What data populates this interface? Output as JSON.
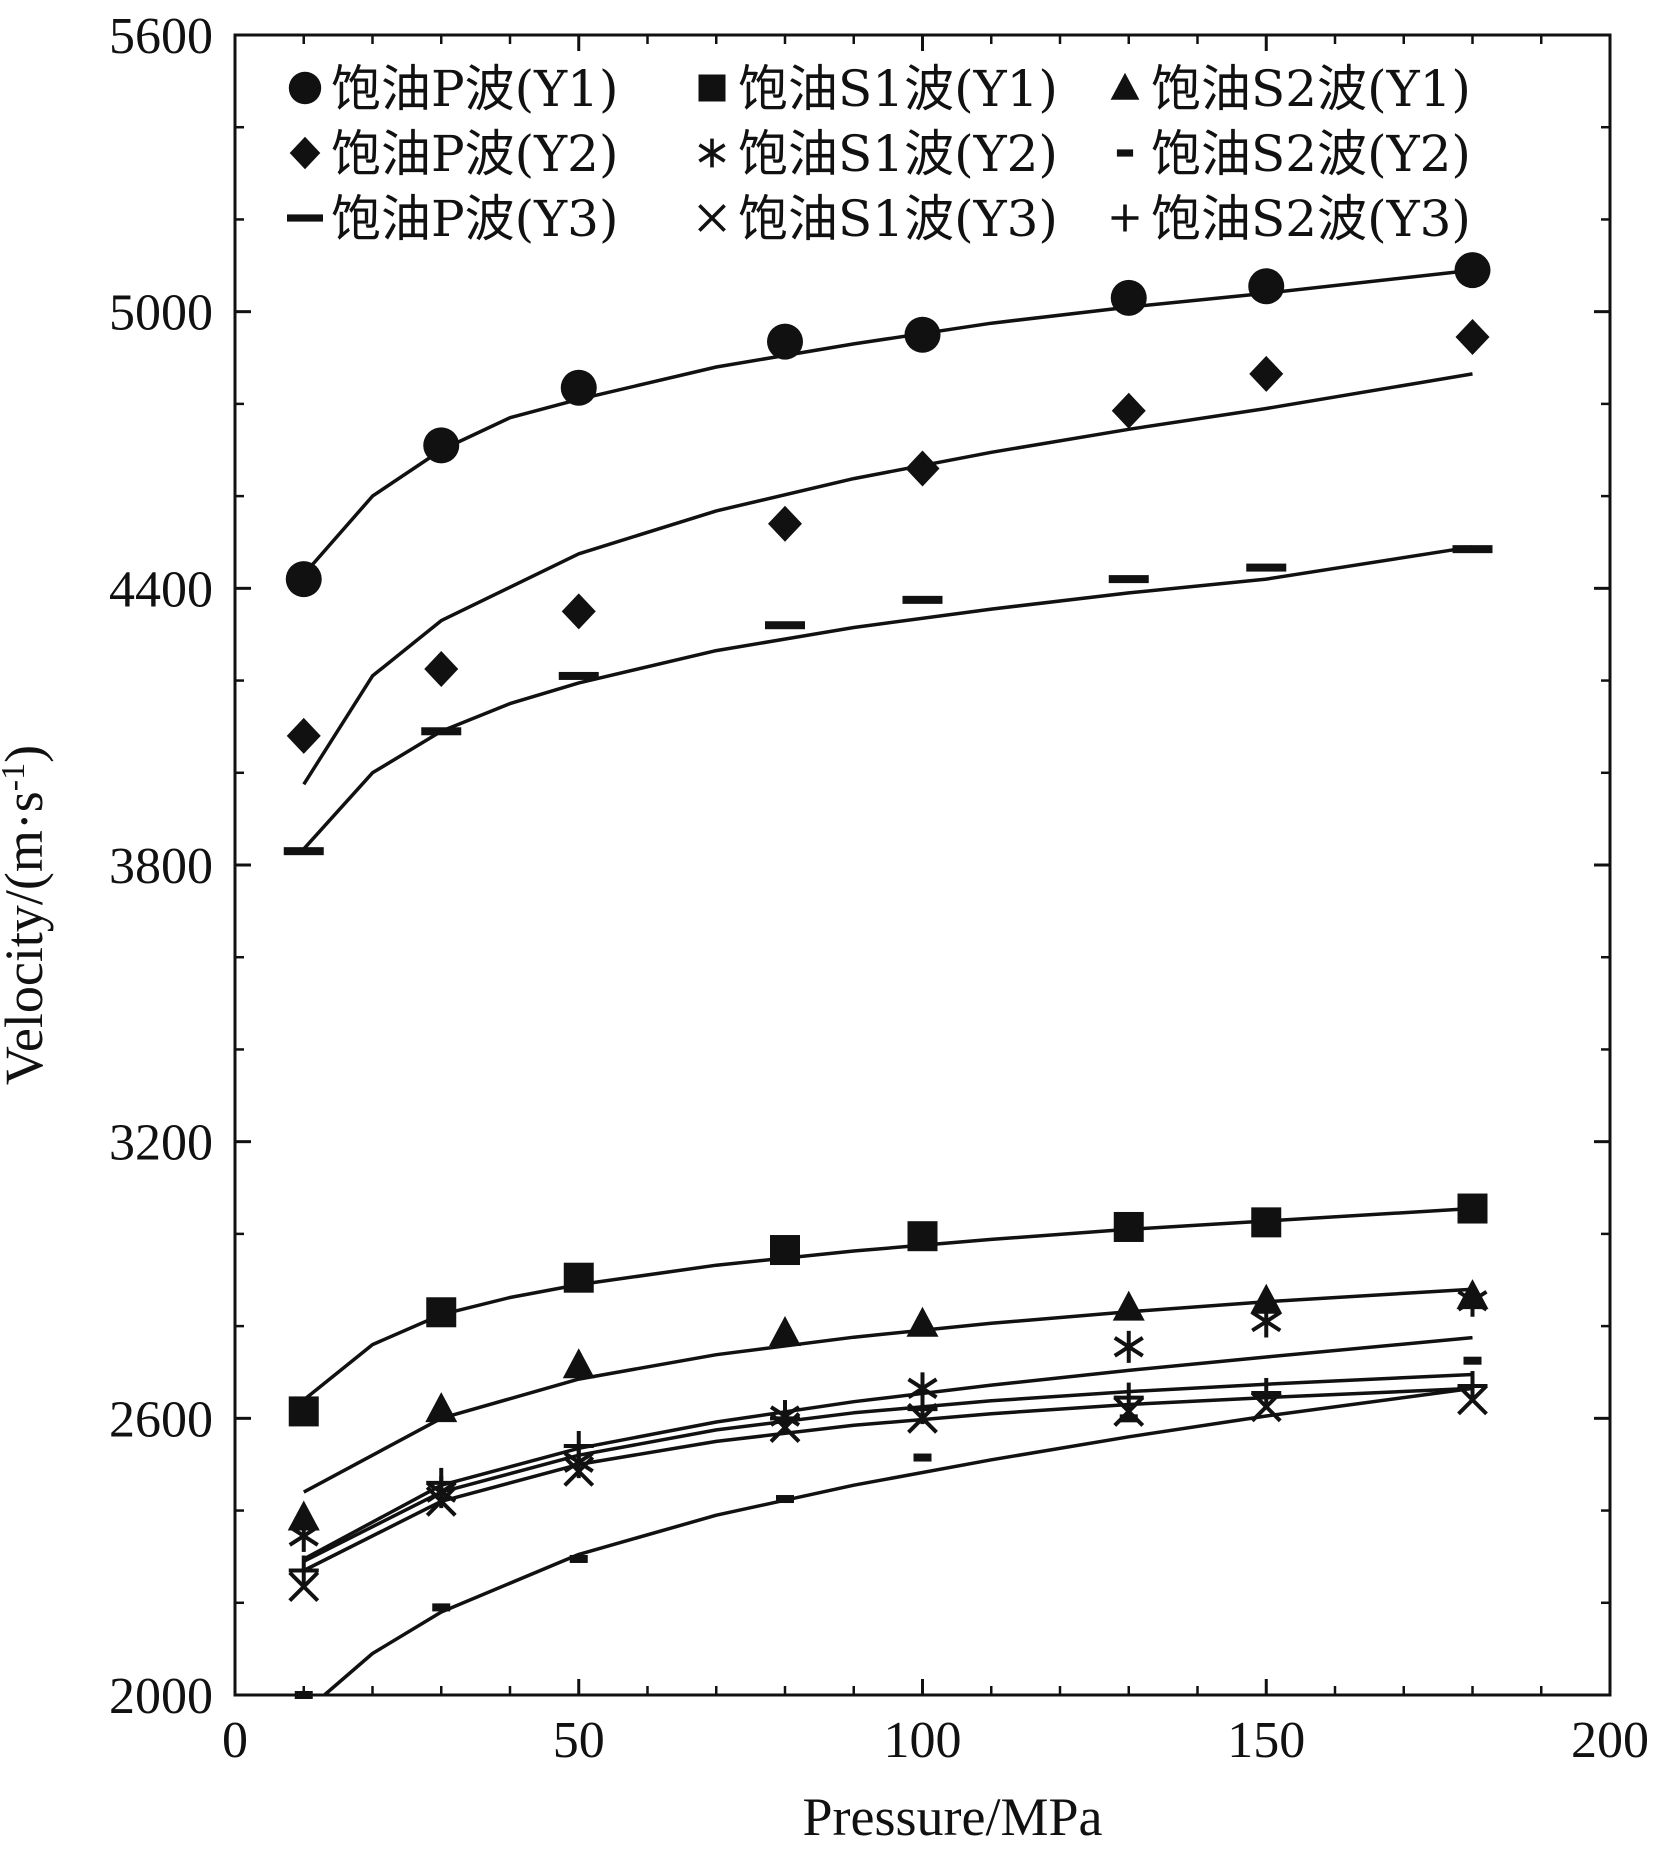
{
  "chart_data": {
    "type": "scatter",
    "title": "",
    "xlabel": "Pressure/MPa",
    "ylabel": "Velocity/(m·s",
    "ylabel_sup": "-1",
    "ylabel_close": ")",
    "xlim": [
      0,
      200
    ],
    "ylim": [
      2000,
      5600
    ],
    "x_ticks": [
      0,
      50,
      100,
      150,
      200
    ],
    "y_ticks": [
      2000,
      2600,
      3200,
      3800,
      4400,
      5000,
      5600
    ],
    "grid": false,
    "legend_position": "top",
    "series": [
      {
        "name": "饱油P波(Y1)",
        "marker": "circle",
        "x": [
          10,
          30,
          50,
          80,
          100,
          130,
          150,
          180
        ],
        "y": [
          4420,
          4710,
          4835,
          4935,
          4950,
          5030,
          5055,
          5090
        ],
        "fit": [
          [
            10,
            4430
          ],
          [
            20,
            4600
          ],
          [
            30,
            4700
          ],
          [
            40,
            4770
          ],
          [
            50,
            4810
          ],
          [
            70,
            4880
          ],
          [
            90,
            4930
          ],
          [
            110,
            4975
          ],
          [
            130,
            5010
          ],
          [
            150,
            5040
          ],
          [
            180,
            5090
          ]
        ]
      },
      {
        "name": "饱油S1波(Y1)",
        "marker": "square",
        "x": [
          10,
          30,
          50,
          80,
          100,
          130,
          150,
          180
        ],
        "y": [
          2615,
          2830,
          2905,
          2965,
          2995,
          3015,
          3025,
          3055
        ],
        "fit": [
          [
            10,
            2640
          ],
          [
            20,
            2760
          ],
          [
            30,
            2825
          ],
          [
            40,
            2862
          ],
          [
            50,
            2890
          ],
          [
            70,
            2932
          ],
          [
            90,
            2963
          ],
          [
            110,
            2988
          ],
          [
            130,
            3010
          ],
          [
            150,
            3028
          ],
          [
            180,
            3055
          ]
        ]
      },
      {
        "name": "饱油S2波(Y1)",
        "marker": "triangle",
        "x": [
          10,
          30,
          50,
          80,
          100,
          130,
          150,
          180
        ],
        "y": [
          2385,
          2620,
          2715,
          2785,
          2805,
          2840,
          2855,
          2865
        ],
        "fit": [
          [
            10,
            2440
          ],
          [
            30,
            2600
          ],
          [
            50,
            2685
          ],
          [
            70,
            2738
          ],
          [
            90,
            2776
          ],
          [
            110,
            2806
          ],
          [
            130,
            2831
          ],
          [
            150,
            2853
          ],
          [
            180,
            2880
          ]
        ]
      },
      {
        "name": "饱油P波(Y2)",
        "marker": "diamond",
        "x": [
          10,
          30,
          50,
          80,
          100,
          130,
          150,
          180
        ],
        "y": [
          4080,
          4225,
          4350,
          4540,
          4660,
          4785,
          4865,
          4945
        ],
        "fit": [
          [
            10,
            3975
          ],
          [
            20,
            4210
          ],
          [
            30,
            4330
          ],
          [
            50,
            4475
          ],
          [
            70,
            4568
          ],
          [
            90,
            4638
          ],
          [
            110,
            4695
          ],
          [
            130,
            4745
          ],
          [
            150,
            4790
          ],
          [
            180,
            4865
          ]
        ]
      },
      {
        "name": "饱油S1波(Y2)",
        "marker": "asterisk",
        "x": [
          10,
          30,
          50,
          80,
          100,
          130,
          150,
          180
        ],
        "y": [
          2345,
          2440,
          2505,
          2605,
          2665,
          2755,
          2810,
          2855
        ],
        "fit": [
          [
            10,
            2295
          ],
          [
            30,
            2455
          ],
          [
            50,
            2535
          ],
          [
            70,
            2592
          ],
          [
            90,
            2636
          ],
          [
            110,
            2672
          ],
          [
            130,
            2704
          ],
          [
            150,
            2733
          ],
          [
            180,
            2775
          ]
        ]
      },
      {
        "name": "饱油S2波(Y2)",
        "marker": "dash",
        "x": [
          10,
          30,
          50,
          80,
          100,
          130,
          150,
          180
        ],
        "y": [
          2000,
          2190,
          2295,
          2425,
          2515,
          2600,
          2650,
          2725
        ],
        "fit": [
          [
            13,
            2000
          ],
          [
            20,
            2090
          ],
          [
            30,
            2180
          ],
          [
            50,
            2305
          ],
          [
            70,
            2390
          ],
          [
            90,
            2455
          ],
          [
            110,
            2510
          ],
          [
            130,
            2560
          ],
          [
            150,
            2605
          ],
          [
            180,
            2665
          ]
        ]
      },
      {
        "name": "饱油P波(Y3)",
        "marker": "bar",
        "x": [
          10,
          30,
          50,
          80,
          100,
          130,
          150,
          180
        ],
        "y": [
          3830,
          4090,
          4210,
          4320,
          4375,
          4420,
          4445,
          4485
        ],
        "fit": [
          [
            10,
            3835
          ],
          [
            20,
            4000
          ],
          [
            30,
            4090
          ],
          [
            40,
            4150
          ],
          [
            50,
            4195
          ],
          [
            70,
            4265
          ],
          [
            90,
            4315
          ],
          [
            110,
            4355
          ],
          [
            130,
            4390
          ],
          [
            150,
            4420
          ],
          [
            180,
            4490
          ]
        ]
      },
      {
        "name": "饱油S1波(Y3)",
        "marker": "x",
        "x": [
          10,
          30,
          50,
          80,
          100,
          130,
          150,
          180
        ],
        "y": [
          2235,
          2420,
          2485,
          2580,
          2600,
          2615,
          2625,
          2640
        ],
        "fit": [
          [
            10,
            2270
          ],
          [
            30,
            2420
          ],
          [
            50,
            2500
          ],
          [
            70,
            2550
          ],
          [
            90,
            2585
          ],
          [
            110,
            2610
          ],
          [
            130,
            2630
          ],
          [
            150,
            2645
          ],
          [
            180,
            2665
          ]
        ]
      },
      {
        "name": "饱油S2波(Y3)",
        "marker": "plus",
        "x": [
          10,
          30,
          50,
          80,
          100,
          130,
          150,
          180
        ],
        "y": [
          2270,
          2460,
          2540,
          2600,
          2620,
          2645,
          2655,
          2670
        ],
        "fit": [
          [
            10,
            2290
          ],
          [
            30,
            2440
          ],
          [
            50,
            2520
          ],
          [
            70,
            2575
          ],
          [
            90,
            2612
          ],
          [
            110,
            2638
          ],
          [
            130,
            2658
          ],
          [
            150,
            2674
          ],
          [
            180,
            2695
          ]
        ]
      }
    ]
  }
}
